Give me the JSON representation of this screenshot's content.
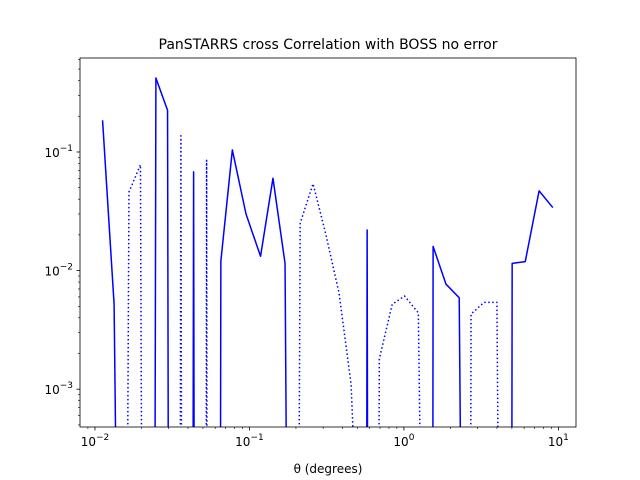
{
  "chart_data": {
    "type": "line",
    "title": "PanSTARRS cross Correlation with BOSS no error",
    "xlabel": "θ (degrees)",
    "ylabel": "",
    "xscale": "log",
    "yscale": "log",
    "xlim": [
      0.008,
      13.0
    ],
    "ylim": [
      0.00048,
      0.62
    ],
    "grid": false,
    "xticks": [
      {
        "value": 0.01,
        "base": "10",
        "exp": "−2"
      },
      {
        "value": 0.1,
        "base": "10",
        "exp": "−1"
      },
      {
        "value": 1,
        "base": "10",
        "exp": "0"
      },
      {
        "value": 10,
        "base": "10",
        "exp": "1"
      }
    ],
    "yticks": [
      {
        "value": 0.001,
        "base": "10",
        "exp": "−3"
      },
      {
        "value": 0.01,
        "base": "10",
        "exp": "−2"
      },
      {
        "value": 0.1,
        "base": "10",
        "exp": "−1"
      }
    ],
    "color": "#0000ff",
    "series": [
      {
        "style": "solid",
        "points": [
          [
            0.0112,
            0.185
          ],
          [
            0.0133,
            0.0052
          ],
          [
            0.0136,
            0.0004
          ]
        ]
      },
      {
        "style": "dotted",
        "points": [
          [
            0.0163,
            0.0004
          ],
          [
            0.0166,
            0.046
          ],
          [
            0.0197,
            0.078
          ],
          [
            0.02,
            0.0004
          ]
        ]
      },
      {
        "style": "solid",
        "points": [
          [
            0.0245,
            0.0004
          ],
          [
            0.0248,
            0.42
          ],
          [
            0.0295,
            0.225
          ],
          [
            0.0298,
            0.0004
          ]
        ]
      },
      {
        "style": "dotted",
        "points": [
          [
            0.0357,
            0.0004
          ],
          [
            0.036,
            0.137
          ],
          [
            0.0363,
            0.0004
          ]
        ]
      },
      {
        "style": "solid",
        "points": [
          [
            0.0432,
            0.0004
          ],
          [
            0.0435,
            0.068
          ],
          [
            0.0438,
            0.0004
          ]
        ]
      },
      {
        "style": "dotted",
        "points": [
          [
            0.0525,
            0.0004
          ],
          [
            0.0528,
            0.085
          ],
          [
            0.0531,
            0.0004
          ]
        ]
      },
      {
        "style": "solid",
        "points": [
          [
            0.065,
            0.0004
          ],
          [
            0.0653,
            0.012
          ],
          [
            0.0775,
            0.104
          ],
          [
            0.095,
            0.03
          ],
          [
            0.118,
            0.0132
          ],
          [
            0.142,
            0.06
          ],
          [
            0.17,
            0.0115
          ],
          [
            0.173,
            0.0004
          ]
        ]
      },
      {
        "style": "dotted",
        "points": [
          [
            0.21,
            0.0004
          ],
          [
            0.213,
            0.025
          ],
          [
            0.258,
            0.054
          ],
          [
            0.31,
            0.021
          ],
          [
            0.38,
            0.0065
          ],
          [
            0.455,
            0.0011
          ],
          [
            0.47,
            0.0004
          ]
        ]
      },
      {
        "style": "solid",
        "points": [
          [
            0.575,
            0.0004
          ],
          [
            0.578,
            0.022
          ],
          [
            0.581,
            0.0004
          ]
        ]
      },
      {
        "style": "dotted",
        "points": [
          [
            0.69,
            0.0004
          ],
          [
            0.693,
            0.0018
          ],
          [
            0.84,
            0.0052
          ],
          [
            1.01,
            0.0061
          ],
          [
            1.24,
            0.0044
          ],
          [
            1.27,
            0.0004
          ]
        ]
      },
      {
        "style": "solid",
        "points": [
          [
            1.54,
            0.0004
          ],
          [
            1.545,
            0.016
          ],
          [
            1.87,
            0.0077
          ],
          [
            2.28,
            0.0059
          ],
          [
            2.32,
            0.0004
          ]
        ]
      },
      {
        "style": "dotted",
        "points": [
          [
            2.71,
            0.0004
          ],
          [
            2.72,
            0.0043
          ],
          [
            3.3,
            0.0054
          ],
          [
            4.0,
            0.0054
          ],
          [
            4.06,
            0.0004
          ]
        ]
      },
      {
        "style": "solid",
        "points": [
          [
            5.0,
            0.0004
          ],
          [
            5.02,
            0.0115
          ],
          [
            6.1,
            0.0119
          ],
          [
            7.5,
            0.047
          ],
          [
            9.2,
            0.034
          ]
        ]
      }
    ]
  }
}
